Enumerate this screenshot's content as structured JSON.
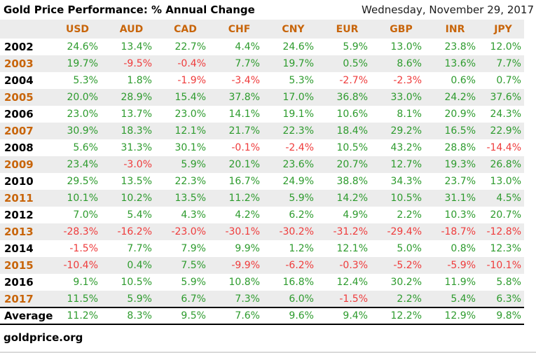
{
  "chart_data": {
    "type": "table",
    "title": "Gold Price Performance: % Annual Change",
    "date": "Wednesday, November 29, 2017",
    "source": "goldprice.org",
    "columns": [
      "USD",
      "AUD",
      "CAD",
      "CHF",
      "CNY",
      "EUR",
      "GBP",
      "INR",
      "JPY"
    ],
    "rows": [
      {
        "year": "2002",
        "values": [
          "24.6%",
          "13.4%",
          "22.7%",
          "4.4%",
          "24.6%",
          "5.9%",
          "13.0%",
          "23.8%",
          "12.0%"
        ]
      },
      {
        "year": "2003",
        "values": [
          "19.7%",
          "-9.5%",
          "-0.4%",
          "7.7%",
          "19.7%",
          "0.5%",
          "8.6%",
          "13.6%",
          "7.7%"
        ]
      },
      {
        "year": "2004",
        "values": [
          "5.3%",
          "1.8%",
          "-1.9%",
          "-3.4%",
          "5.3%",
          "-2.7%",
          "-2.3%",
          "0.6%",
          "0.7%"
        ]
      },
      {
        "year": "2005",
        "values": [
          "20.0%",
          "28.9%",
          "15.4%",
          "37.8%",
          "17.0%",
          "36.8%",
          "33.0%",
          "24.2%",
          "37.6%"
        ]
      },
      {
        "year": "2006",
        "values": [
          "23.0%",
          "13.7%",
          "23.0%",
          "14.1%",
          "19.1%",
          "10.6%",
          "8.1%",
          "20.9%",
          "24.3%"
        ]
      },
      {
        "year": "2007",
        "values": [
          "30.9%",
          "18.3%",
          "12.1%",
          "21.7%",
          "22.3%",
          "18.4%",
          "29.2%",
          "16.5%",
          "22.9%"
        ]
      },
      {
        "year": "2008",
        "values": [
          "5.6%",
          "31.3%",
          "30.1%",
          "-0.1%",
          "-2.4%",
          "10.5%",
          "43.2%",
          "28.8%",
          "-14.4%"
        ]
      },
      {
        "year": "2009",
        "values": [
          "23.4%",
          "-3.0%",
          "5.9%",
          "20.1%",
          "23.6%",
          "20.7%",
          "12.7%",
          "19.3%",
          "26.8%"
        ]
      },
      {
        "year": "2010",
        "values": [
          "29.5%",
          "13.5%",
          "22.3%",
          "16.7%",
          "24.9%",
          "38.8%",
          "34.3%",
          "23.7%",
          "13.0%"
        ]
      },
      {
        "year": "2011",
        "values": [
          "10.1%",
          "10.2%",
          "13.5%",
          "11.2%",
          "5.9%",
          "14.2%",
          "10.5%",
          "31.1%",
          "4.5%"
        ]
      },
      {
        "year": "2012",
        "values": [
          "7.0%",
          "5.4%",
          "4.3%",
          "4.2%",
          "6.2%",
          "4.9%",
          "2.2%",
          "10.3%",
          "20.7%"
        ]
      },
      {
        "year": "2013",
        "values": [
          "-28.3%",
          "-16.2%",
          "-23.0%",
          "-30.1%",
          "-30.2%",
          "-31.2%",
          "-29.4%",
          "-18.7%",
          "-12.8%"
        ]
      },
      {
        "year": "2014",
        "values": [
          "-1.5%",
          "7.7%",
          "7.9%",
          "9.9%",
          "1.2%",
          "12.1%",
          "5.0%",
          "0.8%",
          "12.3%"
        ]
      },
      {
        "year": "2015",
        "values": [
          "-10.4%",
          "0.4%",
          "7.5%",
          "-9.9%",
          "-6.2%",
          "-0.3%",
          "-5.2%",
          "-5.9%",
          "-10.1%"
        ]
      },
      {
        "year": "2016",
        "values": [
          "9.1%",
          "10.5%",
          "5.9%",
          "10.8%",
          "16.8%",
          "12.4%",
          "30.2%",
          "11.9%",
          "5.8%"
        ]
      },
      {
        "year": "2017",
        "values": [
          "11.5%",
          "5.9%",
          "6.7%",
          "7.3%",
          "6.0%",
          "-1.5%",
          "2.2%",
          "5.4%",
          "6.3%"
        ]
      }
    ],
    "average": {
      "label": "Average",
      "values": [
        "11.2%",
        "8.3%",
        "9.5%",
        "7.6%",
        "9.6%",
        "9.4%",
        "12.2%",
        "12.9%",
        "9.8%"
      ]
    },
    "colors": {
      "positive": "#2d9b2d",
      "negative": "#ef3b3b",
      "header_accent": "#c8650a",
      "stripe": "#ececec"
    }
  }
}
